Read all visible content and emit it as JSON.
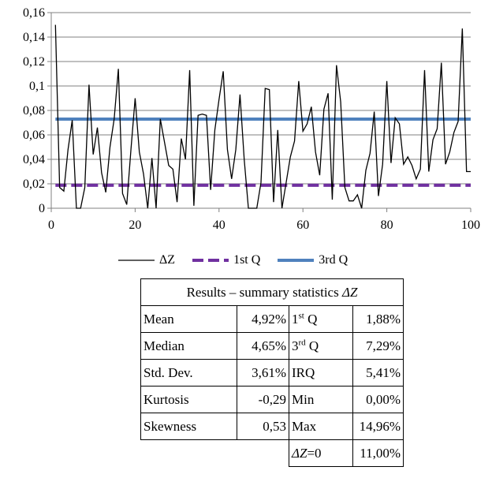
{
  "chart_data": {
    "type": "line",
    "xlim": [
      0,
      100
    ],
    "ylim": [
      0,
      0.16
    ],
    "x_ticks": [
      "0",
      "20",
      "40",
      "60",
      "80",
      "100"
    ],
    "y_ticks": [
      "0",
      "0,02",
      "0,04",
      "0,06",
      "0,08",
      "0,1",
      "0,12",
      "0,14",
      "0,16"
    ],
    "grid": "horizontal",
    "legend_position": "bottom",
    "series": [
      {
        "name": "ΔZ",
        "color": "#000000",
        "style": "solid-thin",
        "x": [
          1,
          2,
          3,
          4,
          5,
          6,
          7,
          8,
          9,
          10,
          11,
          12,
          13,
          14,
          15,
          16,
          17,
          18,
          19,
          20,
          21,
          22,
          23,
          24,
          25,
          26,
          27,
          28,
          29,
          30,
          31,
          32,
          33,
          34,
          35,
          36,
          37,
          38,
          39,
          40,
          41,
          42,
          43,
          44,
          45,
          46,
          47,
          48,
          49,
          50,
          51,
          52,
          53,
          54,
          55,
          56,
          57,
          58,
          59,
          60,
          61,
          62,
          63,
          64,
          65,
          66,
          67,
          68,
          69,
          70,
          71,
          72,
          73,
          74,
          75,
          76,
          77,
          78,
          79,
          80,
          81,
          82,
          83,
          84,
          85,
          86,
          87,
          88,
          89,
          90,
          91,
          92,
          93,
          94,
          95,
          96,
          97,
          98,
          99,
          100
        ],
        "values": [
          0.15,
          0.017,
          0.014,
          0.048,
          0.072,
          0.0,
          0.0,
          0.017,
          0.101,
          0.044,
          0.066,
          0.029,
          0.013,
          0.05,
          0.073,
          0.114,
          0.012,
          0.003,
          0.048,
          0.09,
          0.046,
          0.028,
          0.0,
          0.041,
          0.0,
          0.073,
          0.054,
          0.035,
          0.032,
          0.005,
          0.057,
          0.04,
          0.113,
          0.002,
          0.076,
          0.077,
          0.076,
          0.015,
          0.064,
          0.089,
          0.112,
          0.048,
          0.024,
          0.048,
          0.093,
          0.04,
          0.0,
          0.0,
          0.0,
          0.021,
          0.098,
          0.097,
          0.005,
          0.064,
          0.0,
          0.021,
          0.042,
          0.055,
          0.104,
          0.063,
          0.069,
          0.083,
          0.046,
          0.027,
          0.081,
          0.094,
          0.007,
          0.117,
          0.087,
          0.017,
          0.006,
          0.006,
          0.011,
          0.0,
          0.031,
          0.045,
          0.079,
          0.01,
          0.036,
          0.104,
          0.037,
          0.074,
          0.069,
          0.036,
          0.042,
          0.035,
          0.024,
          0.032,
          0.113,
          0.03,
          0.056,
          0.065,
          0.119,
          0.036,
          0.046,
          0.062,
          0.071,
          0.147,
          0.03,
          0.03
        ]
      },
      {
        "name": "1st Q",
        "color": "#7030A0",
        "style": "dashed-thick",
        "x": [
          1,
          100
        ],
        "values": [
          0.0188,
          0.0188
        ]
      },
      {
        "name": "3rd Q",
        "color": "#4F81BD",
        "style": "solid-thick",
        "x": [
          1,
          100
        ],
        "values": [
          0.0729,
          0.0729
        ]
      }
    ]
  },
  "stats_table": {
    "title_prefix": "Results – summary statistics ",
    "title_symbol": "ΔZ",
    "rows": [
      {
        "name": "Mean",
        "value": "4,92%",
        "name2_prefix": "1",
        "name2_sup": "st",
        "name2_suffix": " Q",
        "value2": "1,88%"
      },
      {
        "name": "Median",
        "value": "4,65%",
        "name2_prefix": "3",
        "name2_sup": "rd",
        "name2_suffix": " Q",
        "value2": "7,29%"
      },
      {
        "name": "Std. Dev.",
        "value": "3,61%",
        "name2_prefix": "IRQ",
        "name2_sup": "",
        "name2_suffix": "",
        "value2": "5,41%"
      },
      {
        "name": "Kurtosis",
        "value": "-0,29",
        "name2_prefix": "Min",
        "name2_sup": "",
        "name2_suffix": "",
        "value2": "0,00%"
      },
      {
        "name": "Skewness",
        "value": "0,53",
        "name2_prefix": "Max",
        "name2_sup": "",
        "name2_suffix": "",
        "value2": "14,96%"
      }
    ],
    "extra_row": {
      "symbol": "ΔZ",
      "equals": "=0",
      "value": "11,00%"
    }
  }
}
